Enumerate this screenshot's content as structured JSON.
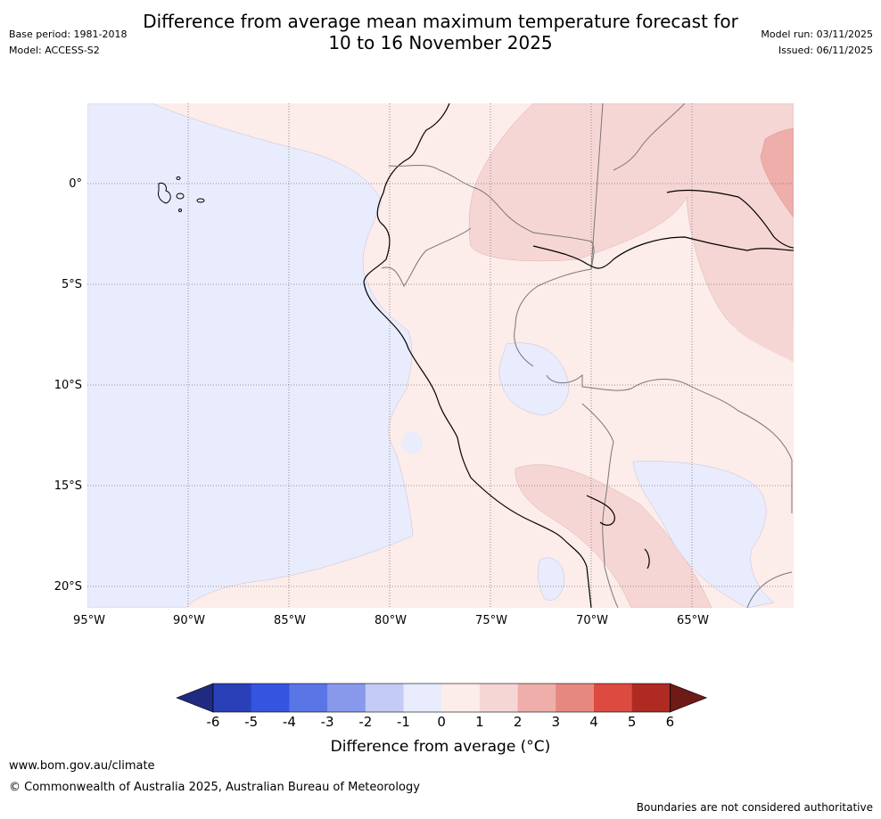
{
  "title_line1": "Difference from average mean maximum temperature forecast for",
  "title_line2": "10 to 16 November 2025",
  "base_period": "Base period: 1981-2018",
  "model": "Model: ACCESS-S2",
  "model_run": "Model run: 03/11/2025",
  "issued": "Issued: 06/11/2025",
  "lat_labels": [
    "0°",
    "5°S",
    "10°S",
    "15°S",
    "20°S"
  ],
  "lon_labels": [
    "95°W",
    "90°W",
    "85°W",
    "80°W",
    "75°W",
    "70°W",
    "65°W"
  ],
  "colorbar": {
    "ticks": [
      "-6",
      "-5",
      "-4",
      "-3",
      "-2",
      "-1",
      "0",
      "1",
      "2",
      "3",
      "4",
      "5",
      "6"
    ],
    "colors": [
      "#1f2a80",
      "#2a40b8",
      "#3355e0",
      "#5a76e6",
      "#8899ec",
      "#c4cbf4",
      "#e8ecfc",
      "#fcecea",
      "#f6d6d4",
      "#eeaeaa",
      "#e68880",
      "#dc4a40",
      "#ae2a22",
      "#6e1a16"
    ],
    "caption": "Difference from average (°C)"
  },
  "footer_url": "www.bom.gov.au/climate",
  "footer_copyright": "© Commonwealth of Australia 2025, Australian Bureau of Meteorology",
  "footer_disclaimer": "Boundaries are not considered authoritative"
}
